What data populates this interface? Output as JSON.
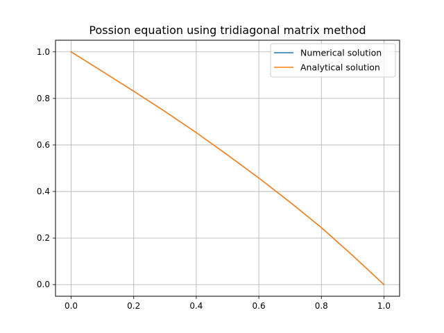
{
  "chart_data": {
    "type": "line",
    "title": "Possion equation using tridiagonal matrix method",
    "xlabel": "",
    "ylabel": "",
    "xlim": [
      -0.05,
      1.05
    ],
    "ylim": [
      -0.05,
      1.05
    ],
    "xticks": [
      0.0,
      0.2,
      0.4,
      0.6,
      0.8,
      1.0
    ],
    "yticks": [
      0.0,
      0.2,
      0.4,
      0.6,
      0.8,
      1.0
    ],
    "xtick_labels": [
      "0.0",
      "0.2",
      "0.4",
      "0.6",
      "0.8",
      "1.0"
    ],
    "ytick_labels": [
      "0.0",
      "0.2",
      "0.4",
      "0.6",
      "0.8",
      "1.0"
    ],
    "grid": true,
    "legend_position": "top-right",
    "series": [
      {
        "name": "Numerical solution",
        "color": "#1f77b4",
        "x": [
          0.0,
          0.1,
          0.2,
          0.3,
          0.4,
          0.5,
          0.6,
          0.7,
          0.8,
          0.9,
          1.0
        ],
        "y": [
          1.0,
          0.916,
          0.831,
          0.744,
          0.653,
          0.557,
          0.458,
          0.354,
          0.245,
          0.125,
          0.0
        ]
      },
      {
        "name": "Analytical solution",
        "color": "#ff7f0e",
        "x": [
          0.0,
          0.1,
          0.2,
          0.3,
          0.4,
          0.5,
          0.6,
          0.7,
          0.8,
          0.9,
          1.0
        ],
        "y": [
          1.0,
          0.916,
          0.831,
          0.744,
          0.653,
          0.557,
          0.458,
          0.354,
          0.245,
          0.125,
          0.0
        ]
      }
    ]
  }
}
